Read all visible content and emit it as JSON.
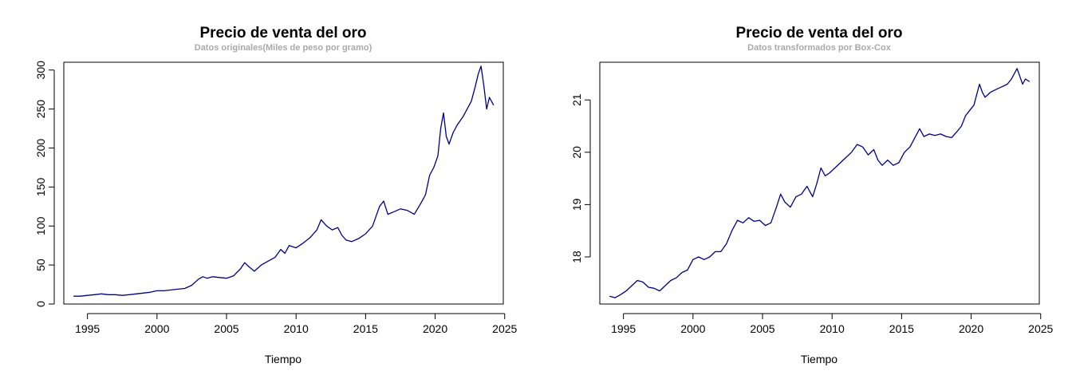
{
  "chart_data": [
    {
      "type": "line",
      "title": "Precio de venta del oro",
      "subtitle": "Datos originales(Miles de peso por gramo)",
      "xlabel": "Tiempo",
      "ylabel": "",
      "xlim": [
        1993.3,
        2024.9
      ],
      "ylim": [
        0,
        310
      ],
      "xticks": [
        1995,
        2000,
        2005,
        2010,
        2015,
        2020,
        2025
      ],
      "yticks": [
        0,
        50,
        100,
        150,
        200,
        250,
        300
      ],
      "line_color": "#00008b",
      "series": [
        {
          "x": [
            1994.0,
            1994.5,
            1995.0,
            1995.5,
            1996.0,
            1996.5,
            1997.0,
            1997.5,
            1998.0,
            1998.5,
            1999.0,
            1999.5,
            2000.0,
            2000.5,
            2001.0,
            2001.5,
            2002.0,
            2002.5,
            2003.0,
            2003.3,
            2003.6,
            2004.0,
            2004.5,
            2005.0,
            2005.5,
            2006.0,
            2006.3,
            2006.6,
            2007.0,
            2007.5,
            2008.0,
            2008.5,
            2008.9,
            2009.2,
            2009.5,
            2010.0,
            2010.5,
            2011.0,
            2011.5,
            2011.8,
            2012.2,
            2012.6,
            2013.0,
            2013.3,
            2013.6,
            2014.0,
            2014.5,
            2015.0,
            2015.5,
            2016.0,
            2016.3,
            2016.6,
            2017.0,
            2017.5,
            2018.0,
            2018.5,
            2019.0,
            2019.3,
            2019.6,
            2019.9,
            2020.2,
            2020.4,
            2020.6,
            2020.8,
            2021.0,
            2021.3,
            2021.6,
            2022.0,
            2022.3,
            2022.6,
            2022.9,
            2023.1,
            2023.3,
            2023.5,
            2023.7,
            2023.9,
            2024.2
          ],
          "y": [
            10,
            10,
            11,
            12,
            13,
            12,
            12,
            11,
            12,
            13,
            14,
            15,
            17,
            17,
            18,
            19,
            20,
            24,
            32,
            35,
            33,
            35,
            34,
            33,
            36,
            45,
            53,
            48,
            42,
            50,
            55,
            60,
            70,
            65,
            75,
            72,
            78,
            85,
            95,
            108,
            100,
            95,
            98,
            88,
            82,
            80,
            84,
            90,
            100,
            125,
            132,
            115,
            118,
            122,
            120,
            115,
            130,
            140,
            165,
            175,
            190,
            225,
            245,
            215,
            205,
            220,
            230,
            240,
            250,
            260,
            280,
            295,
            305,
            280,
            250,
            265,
            255
          ]
        }
      ]
    },
    {
      "type": "line",
      "title": "Precio de venta del oro",
      "subtitle": "Datos transformados por Box-Cox",
      "xlabel": "Tiempo",
      "ylabel": "",
      "xlim": [
        1993.3,
        2024.9
      ],
      "ylim": [
        17.1,
        21.72
      ],
      "xticks": [
        1995,
        2000,
        2005,
        2010,
        2015,
        2020,
        2025
      ],
      "yticks": [
        18,
        19,
        20,
        21
      ],
      "line_color": "#00008b",
      "series": [
        {
          "x": [
            1994.0,
            1994.4,
            1994.8,
            1995.2,
            1995.6,
            1996.0,
            1996.4,
            1996.8,
            1997.2,
            1997.6,
            1998.0,
            1998.4,
            1998.8,
            1999.2,
            1999.6,
            2000.0,
            2000.4,
            2000.8,
            2001.2,
            2001.6,
            2002.0,
            2002.4,
            2002.8,
            2003.2,
            2003.6,
            2004.0,
            2004.4,
            2004.8,
            2005.2,
            2005.6,
            2006.0,
            2006.3,
            2006.6,
            2007.0,
            2007.4,
            2007.8,
            2008.2,
            2008.6,
            2008.9,
            2009.2,
            2009.5,
            2009.8,
            2010.2,
            2010.6,
            2011.0,
            2011.4,
            2011.8,
            2012.2,
            2012.6,
            2013.0,
            2013.3,
            2013.6,
            2014.0,
            2014.4,
            2014.8,
            2015.2,
            2015.6,
            2016.0,
            2016.3,
            2016.6,
            2017.0,
            2017.4,
            2017.8,
            2018.2,
            2018.6,
            2019.0,
            2019.3,
            2019.6,
            2019.9,
            2020.2,
            2020.4,
            2020.6,
            2020.8,
            2021.0,
            2021.4,
            2021.8,
            2022.2,
            2022.6,
            2022.9,
            2023.1,
            2023.3,
            2023.5,
            2023.7,
            2023.9,
            2024.2
          ],
          "y": [
            17.25,
            17.22,
            17.28,
            17.35,
            17.45,
            17.55,
            17.52,
            17.42,
            17.4,
            17.35,
            17.45,
            17.55,
            17.6,
            17.7,
            17.75,
            17.95,
            18.0,
            17.95,
            18.0,
            18.1,
            18.1,
            18.25,
            18.5,
            18.7,
            18.65,
            18.75,
            18.68,
            18.7,
            18.6,
            18.65,
            18.95,
            19.2,
            19.05,
            18.95,
            19.15,
            19.2,
            19.35,
            19.15,
            19.4,
            19.7,
            19.55,
            19.6,
            19.7,
            19.8,
            19.9,
            20.0,
            20.15,
            20.1,
            19.95,
            20.05,
            19.85,
            19.75,
            19.85,
            19.75,
            19.8,
            20.0,
            20.1,
            20.3,
            20.45,
            20.3,
            20.35,
            20.32,
            20.35,
            20.3,
            20.28,
            20.4,
            20.5,
            20.7,
            20.8,
            20.9,
            21.1,
            21.3,
            21.15,
            21.05,
            21.15,
            21.2,
            21.25,
            21.3,
            21.4,
            21.5,
            21.6,
            21.45,
            21.3,
            21.4,
            21.35
          ]
        }
      ]
    }
  ]
}
